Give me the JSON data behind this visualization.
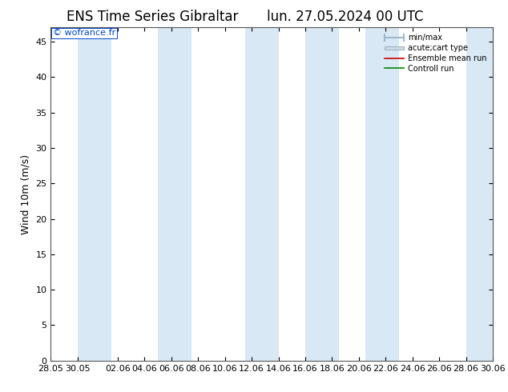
{
  "title_left": "ENS Time Series Gibraltar",
  "title_right": "lun. 27.05.2024 00 UTC",
  "ylabel": "Wind 10m (m/s)",
  "watermark": "© wofrance.fr",
  "ylim": [
    0,
    47
  ],
  "yticks": [
    0,
    5,
    10,
    15,
    20,
    25,
    30,
    35,
    40,
    45
  ],
  "xtick_labels": [
    "28.05",
    "30.05",
    "02.06",
    "04.06",
    "06.06",
    "08.06",
    "10.06",
    "12.06",
    "14.06",
    "16.06",
    "18.06",
    "20.06",
    "22.06",
    "24.06",
    "26.06",
    "28.06",
    "30.06"
  ],
  "xtick_positions": [
    0,
    2,
    5,
    7,
    9,
    11,
    13,
    15,
    17,
    19,
    21,
    23,
    25,
    27,
    29,
    31,
    33
  ],
  "xlim": [
    0,
    33
  ],
  "bg_color": "#ffffff",
  "plot_bg_color": "#ffffff",
  "shade_color": "#d8e8f5",
  "legend_items": [
    "min/max",
    "acute;cart type",
    "Ensemble mean run",
    "Controll run"
  ],
  "shade_pairs": [
    [
      2,
      4.5
    ],
    [
      8,
      10.5
    ],
    [
      14.5,
      17
    ],
    [
      19,
      21.5
    ],
    [
      23.5,
      26
    ],
    [
      31,
      33
    ]
  ],
  "title_fontsize": 12,
  "tick_fontsize": 8,
  "ylabel_fontsize": 9
}
